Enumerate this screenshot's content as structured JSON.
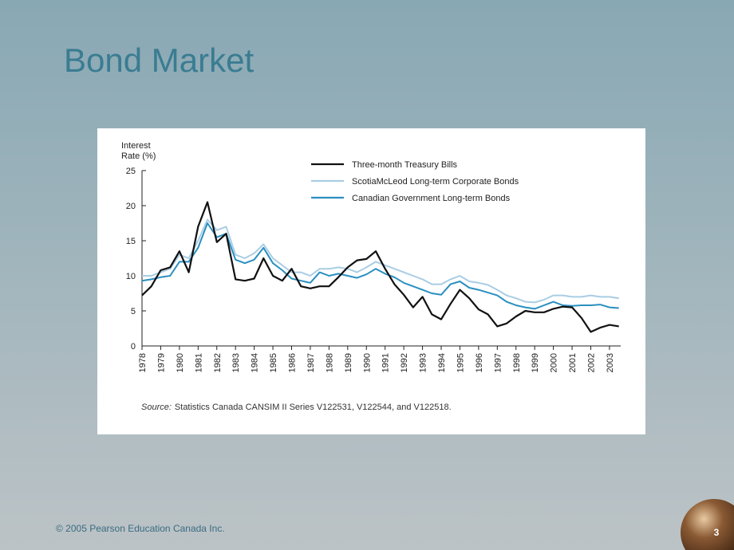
{
  "slide": {
    "title": "Bond Market",
    "footer": "© 2005 Pearson Education Canada Inc.",
    "page": "3"
  },
  "chart_data": {
    "type": "line",
    "ylabel_lines": [
      "Interest",
      "Rate (%)"
    ],
    "source_label": "Source:",
    "source": "Statistics Canada CANSIM II Series V122531, V122544, and V122518.",
    "xlim": [
      1978,
      2003.6
    ],
    "xticks": [
      1978,
      1979,
      1980,
      1981,
      1982,
      1983,
      1984,
      1985,
      1986,
      1987,
      1988,
      1989,
      1990,
      1991,
      1992,
      1993,
      1994,
      1995,
      1996,
      1997,
      1998,
      1999,
      2000,
      2001,
      2002,
      2003
    ],
    "ylim": [
      0,
      25
    ],
    "yticks": [
      0,
      5,
      10,
      15,
      20,
      25
    ],
    "x": [
      1978,
      1978.5,
      1979,
      1979.5,
      1980,
      1980.5,
      1981,
      1981.5,
      1982,
      1982.5,
      1983,
      1983.5,
      1984,
      1984.5,
      1985,
      1985.5,
      1986,
      1986.5,
      1987,
      1987.5,
      1988,
      1988.5,
      1989,
      1989.5,
      1990,
      1990.5,
      1991,
      1991.5,
      1992,
      1992.5,
      1993,
      1993.5,
      1994,
      1994.5,
      1995,
      1995.5,
      1996,
      1996.5,
      1997,
      1997.5,
      1998,
      1998.5,
      1999,
      1999.5,
      2000,
      2000.5,
      2001,
      2001.5,
      2002,
      2002.5,
      2003,
      2003.5
    ],
    "series": [
      {
        "name": "Three-month Treasury Bills",
        "color": "#111111",
        "values": [
          7.2,
          8.5,
          10.8,
          11.2,
          13.5,
          10.5,
          17,
          20.5,
          14.8,
          16,
          9.5,
          9.3,
          9.6,
          12.5,
          10,
          9.3,
          11,
          8.5,
          8.2,
          8.5,
          8.5,
          9.8,
          11.2,
          12.2,
          12.4,
          13.5,
          11,
          8.8,
          7.3,
          5.5,
          7.0,
          4.5,
          3.8,
          6.0,
          8.0,
          6.8,
          5.2,
          4.5,
          2.8,
          3.2,
          4.2,
          5.0,
          4.8,
          4.8,
          5.3,
          5.6,
          5.5,
          4.0,
          2.0,
          2.6,
          3.0,
          2.8
        ]
      },
      {
        "name": "ScotiaMcLeod Long-term Corporate Bonds",
        "color": "#a9cde4",
        "values": [
          10.0,
          10.0,
          10.5,
          11.0,
          13.0,
          12.5,
          15.0,
          18.0,
          16.5,
          17.0,
          13.0,
          12.5,
          13.2,
          14.5,
          12.5,
          11.5,
          10.5,
          10.5,
          10.0,
          11.0,
          11.0,
          11.2,
          11.0,
          10.5,
          11.2,
          12.0,
          11.5,
          11.0,
          10.5,
          10.0,
          9.5,
          8.8,
          8.8,
          9.5,
          10.0,
          9.2,
          9.0,
          8.7,
          8.0,
          7.2,
          6.8,
          6.3,
          6.2,
          6.6,
          7.2,
          7.2,
          7.0,
          7.0,
          7.2,
          7.0,
          7.0,
          6.8
        ]
      },
      {
        "name": "Canadian Government Long-term Bonds",
        "color": "#2a8fc0",
        "values": [
          9.3,
          9.5,
          9.8,
          10.0,
          12.0,
          12.0,
          14.0,
          17.5,
          15.5,
          16.0,
          12.3,
          11.8,
          12.3,
          14.0,
          11.8,
          10.8,
          9.6,
          9.3,
          9.0,
          10.5,
          10.0,
          10.3,
          10.0,
          9.7,
          10.2,
          11.0,
          10.3,
          9.8,
          9.0,
          8.5,
          8.0,
          7.5,
          7.3,
          8.8,
          9.2,
          8.3,
          8.0,
          7.6,
          7.2,
          6.3,
          5.8,
          5.5,
          5.3,
          5.8,
          6.3,
          5.8,
          5.7,
          5.8,
          5.8,
          5.9,
          5.5,
          5.4
        ]
      }
    ]
  }
}
